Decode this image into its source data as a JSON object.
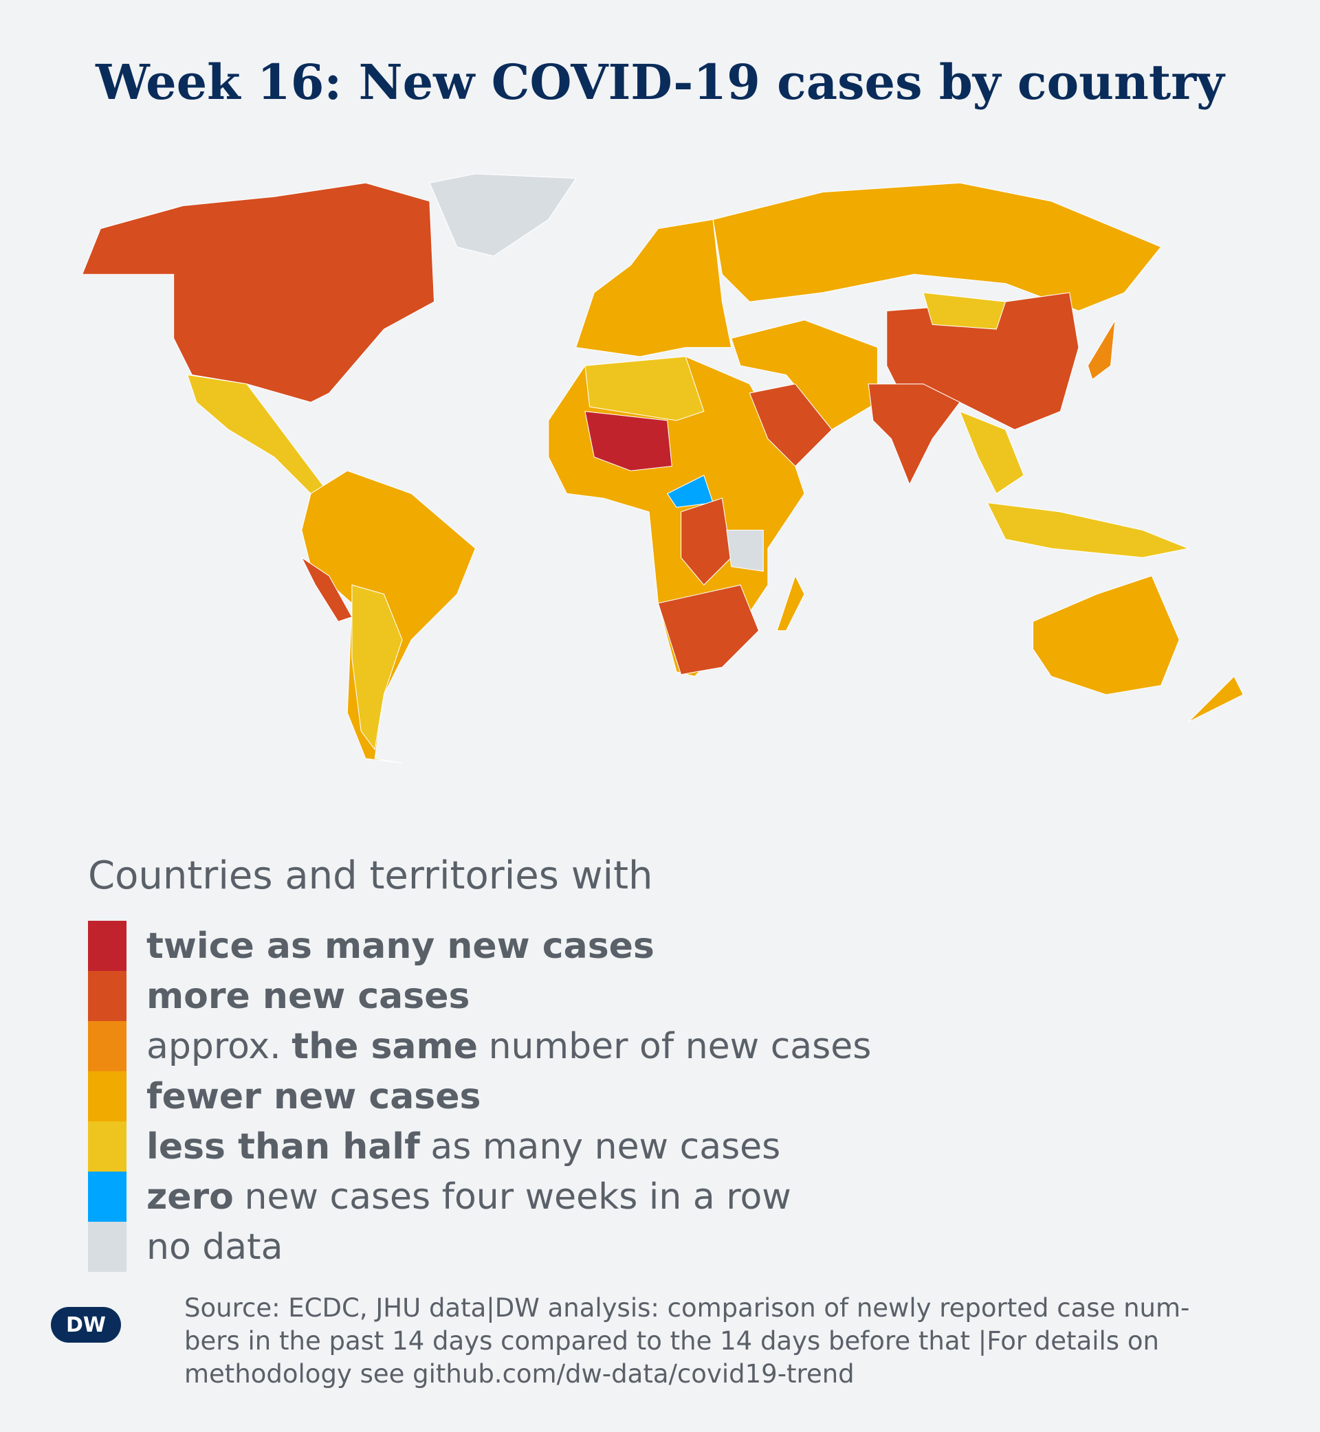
{
  "header": {
    "title": "Week 16: New COVID-19 cases by country"
  },
  "legend": {
    "title": "Countries and territories with",
    "items": [
      {
        "color": "#c1232d",
        "parts": [
          {
            "text": "twice as many new cases",
            "bold": true
          }
        ]
      },
      {
        "color": "#d64d1f",
        "parts": [
          {
            "text": "more new cases",
            "bold": true
          }
        ]
      },
      {
        "color": "#ee8a10",
        "parts": [
          {
            "text": "approx.",
            "bold": false
          },
          {
            "text": "the same",
            "bold": true
          },
          {
            "text": "number of new cases",
            "bold": false
          }
        ]
      },
      {
        "color": "#f0aa00",
        "parts": [
          {
            "text": "fewer new cases",
            "bold": true
          }
        ]
      },
      {
        "color": "#eec51e",
        "parts": [
          {
            "text": "less than half",
            "bold": true
          },
          {
            "text": "as many new cases",
            "bold": false
          }
        ]
      },
      {
        "color": "#00a5ff",
        "parts": [
          {
            "text": "zero",
            "bold": true
          },
          {
            "text": "new cases four weeks in a row",
            "bold": false
          }
        ]
      },
      {
        "color": "#d8dde1",
        "parts": [
          {
            "text": "no data",
            "bold": false
          }
        ]
      }
    ]
  },
  "footer": {
    "logo": "DW",
    "source_lines": [
      "Source: ECDC, JHU data|DW analysis: comparison of newly reported case num-",
      "bers in the past 14 days compared to the 14 days before that |For details on",
      "methodology see github.com/dw-data/covid19-trend"
    ]
  }
}
